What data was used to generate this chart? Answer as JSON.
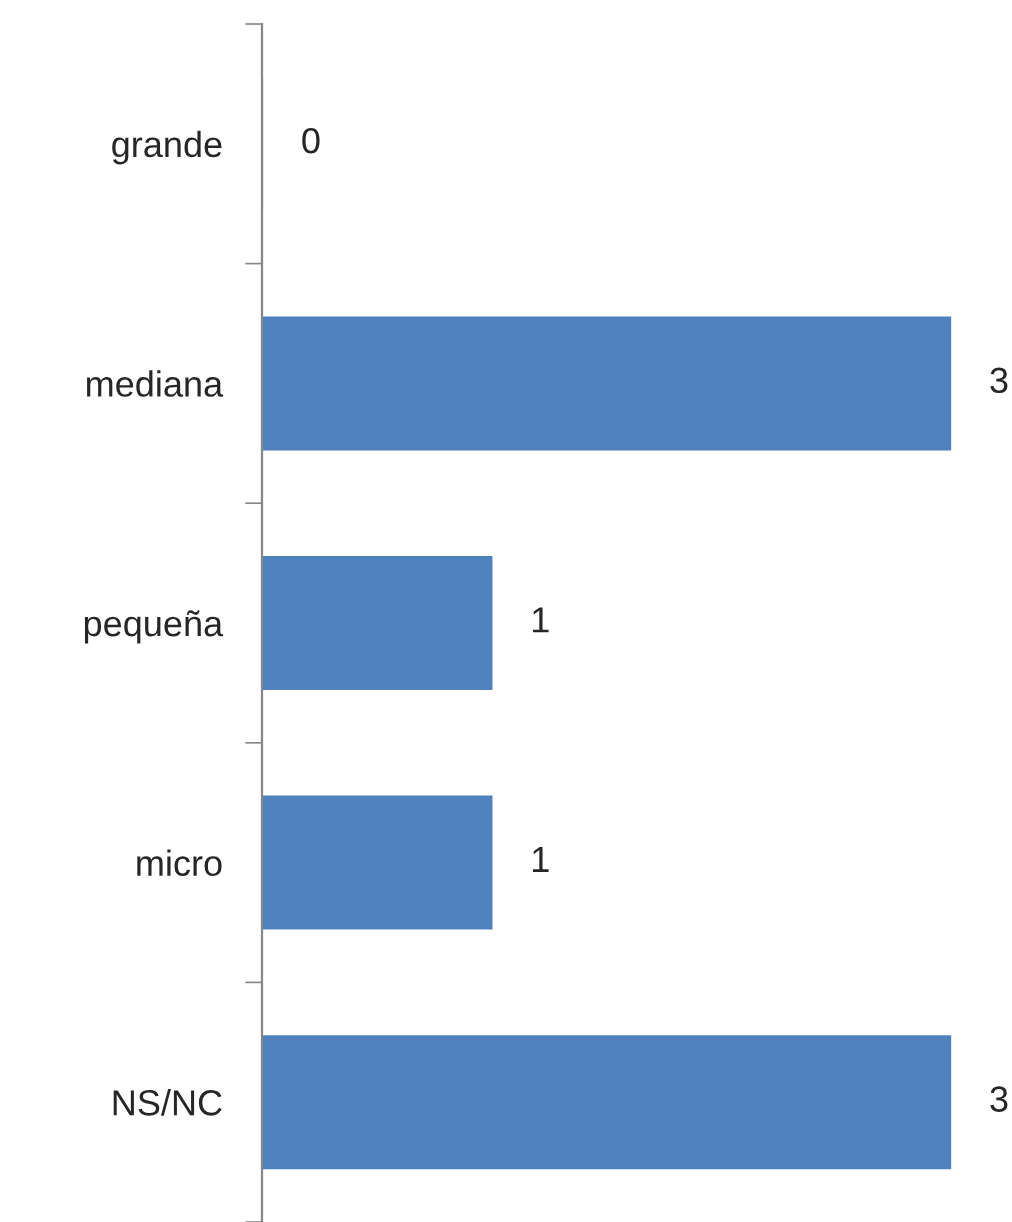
{
  "chart_data": {
    "type": "bar",
    "orientation": "horizontal",
    "categories": [
      "grande",
      "mediana",
      "pequeña",
      "micro",
      "NS/NC"
    ],
    "values": [
      0,
      3,
      1,
      1,
      3
    ],
    "color": "#4f81bd",
    "data_labels": true,
    "grid": false,
    "legend": false
  }
}
